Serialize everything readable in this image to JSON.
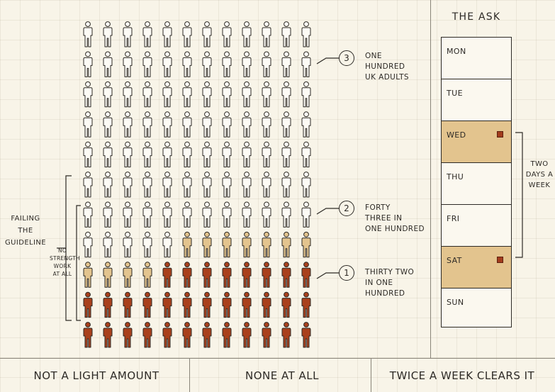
{
  "figure": {
    "rows": 11,
    "cols": 12,
    "category_counts": {
      "none_at_all": 32,
      "some_not_enough": 11,
      "meets_guideline": 57
    },
    "colors": {
      "none_at_all": "#a9401c",
      "some_not_enough": "#e3c48e",
      "meets_guideline": "#fdfbf5",
      "outline": "#2d2a26"
    }
  },
  "callouts": [
    {
      "num": "3",
      "text": "ONE\nHUNDRED\nUK ADULTS"
    },
    {
      "num": "2",
      "text": "FORTY\nTHREE IN\nONE HUNDRED"
    },
    {
      "num": "1",
      "text": "THIRTY TWO\nIN ONE\nHUNDRED"
    }
  ],
  "labels": {
    "failing": "FAILING\nTHE\nGUIDELINE",
    "no_strength": "NO\nSTRENGTH\nWORK\nAT ALL"
  },
  "ask": {
    "title": "THE ASK",
    "days": [
      {
        "label": "MON",
        "highlight": false
      },
      {
        "label": "TUE",
        "highlight": false
      },
      {
        "label": "WED",
        "highlight": true
      },
      {
        "label": "THU",
        "highlight": false
      },
      {
        "label": "FRI",
        "highlight": false
      },
      {
        "label": "SAT",
        "highlight": true
      },
      {
        "label": "SUN",
        "highlight": false
      }
    ],
    "bracket_label": "TWO\nDAYS A\nWEEK"
  },
  "footer": [
    "NOT A LIGHT AMOUNT",
    "NONE AT ALL",
    "TWICE A WEEK CLEARS IT"
  ]
}
